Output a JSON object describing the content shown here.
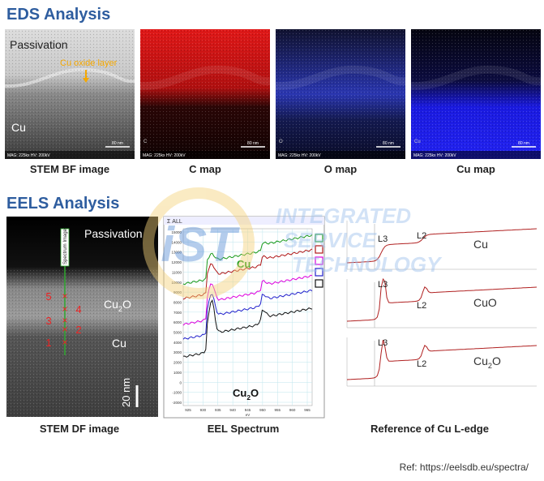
{
  "eds": {
    "title": "EDS Analysis",
    "panels": [
      {
        "caption": "STEM BF image",
        "labels": [
          "Passivation",
          "Cu oxide layer",
          "Cu"
        ],
        "scale": "80 nm",
        "info": "MAG: 225kx HV: 200kV"
      },
      {
        "caption": "C map",
        "badge": "C",
        "scale": "80 nm",
        "info": "MAG: 225kx HV: 200kV"
      },
      {
        "caption": "O map",
        "badge": "O",
        "scale": "80 nm",
        "info": "MAG: 225kx HV: 200kV"
      },
      {
        "caption": "Cu map",
        "badge": "Cu",
        "scale": "80 nm",
        "info": "MAG: 225kx HV: 200kV"
      }
    ]
  },
  "eels": {
    "title": "EELS Analysis",
    "df": {
      "caption": "STEM DF image",
      "passivation": "Passivation",
      "oxide": {
        "base": "Cu",
        "sub": "2",
        "rest": "O"
      },
      "metal": "Cu",
      "points": [
        "1",
        "2",
        "3",
        "4",
        "5"
      ],
      "scale": "20 nm",
      "line_label": "Spectrum Image"
    },
    "spectrum": {
      "caption": "EEL Spectrum",
      "header": "Σ ALL",
      "top_label": "Cu",
      "bottom_label": {
        "base": "Cu",
        "sub": "2",
        "rest": "O"
      },
      "yticks": [
        "15000",
        "14000",
        "13000",
        "12000",
        "11000",
        "10000",
        "9000",
        "8000",
        "7000",
        "6000",
        "5000",
        "4000",
        "3000",
        "2000",
        "1000",
        "0",
        "-1000",
        "-2000"
      ],
      "xticks": [
        "925",
        "930",
        "935",
        "940",
        "945",
        "950",
        "955",
        "960",
        "965"
      ],
      "x_label": "eV"
    },
    "reference": {
      "caption": "Reference of Cu L-edge",
      "panels": [
        {
          "name": {
            "base": "Cu",
            "sub": "",
            "rest": ""
          },
          "edges": [
            "L3",
            "L2"
          ]
        },
        {
          "name": {
            "base": "CuO",
            "sub": "",
            "rest": ""
          },
          "edges": [
            "L3",
            "L2"
          ]
        },
        {
          "name": {
            "base": "Cu",
            "sub": "2",
            "rest": "O"
          },
          "edges": [
            "L3",
            "L2"
          ]
        }
      ]
    }
  },
  "watermark": {
    "logo": "iST",
    "lines": [
      "INTEGRATED",
      "SERVICE",
      "TECHNOLOGY"
    ]
  },
  "ref": "Ref: https://eelsdb.eu/spectra/"
}
